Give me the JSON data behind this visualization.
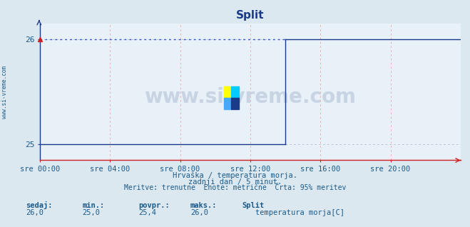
{
  "title": "Split",
  "bg_color": "#dce8f0",
  "plot_bg_color": "#e8f0f8",
  "grid_color_h": "#b0b8c8",
  "grid_color_v": "#e8a0a0",
  "line_color": "#1a3a8a",
  "dotted_line_color": "#3355cc",
  "axis_color_x": "#cc2222",
  "axis_color_y": "#1a3a8a",
  "text_color": "#1a5a8a",
  "title_color": "#1a3a8a",
  "ylim": [
    24.85,
    26.15
  ],
  "yticks": [
    25.0,
    26.0
  ],
  "ytick_labels": [
    "25",
    "26"
  ],
  "xlim": [
    0,
    288
  ],
  "xticks": [
    0,
    48,
    96,
    144,
    192,
    240
  ],
  "xtick_labels": [
    "sre 00:00",
    "sre 04:00",
    "sre 08:00",
    "sre 12:00",
    "sre 16:00",
    "sre 20:00"
  ],
  "data_transition_x": 168,
  "data_start_value": 25.0,
  "data_end_value": 26.0,
  "watermark": "www.si-vreme.com",
  "subtitle1": "Hrvaška / temperatura morja.",
  "subtitle2": "zadnji dan / 5 minut.",
  "subtitle3": "Meritve: trenutne  Enote: metrične  Črta: 95% meritev",
  "legend_labels": [
    "sedaj:",
    "min.:",
    "povpr.:",
    "maks.:",
    "Split"
  ],
  "legend_values": [
    "26,0",
    "25,0",
    "25,4",
    "26,0"
  ],
  "legend_series": "temperatura morja[C]",
  "legend_series_color": "#1a3a8a",
  "watermark_color": "#c8d4e4",
  "sidebar_text": "www.si-vreme.com"
}
